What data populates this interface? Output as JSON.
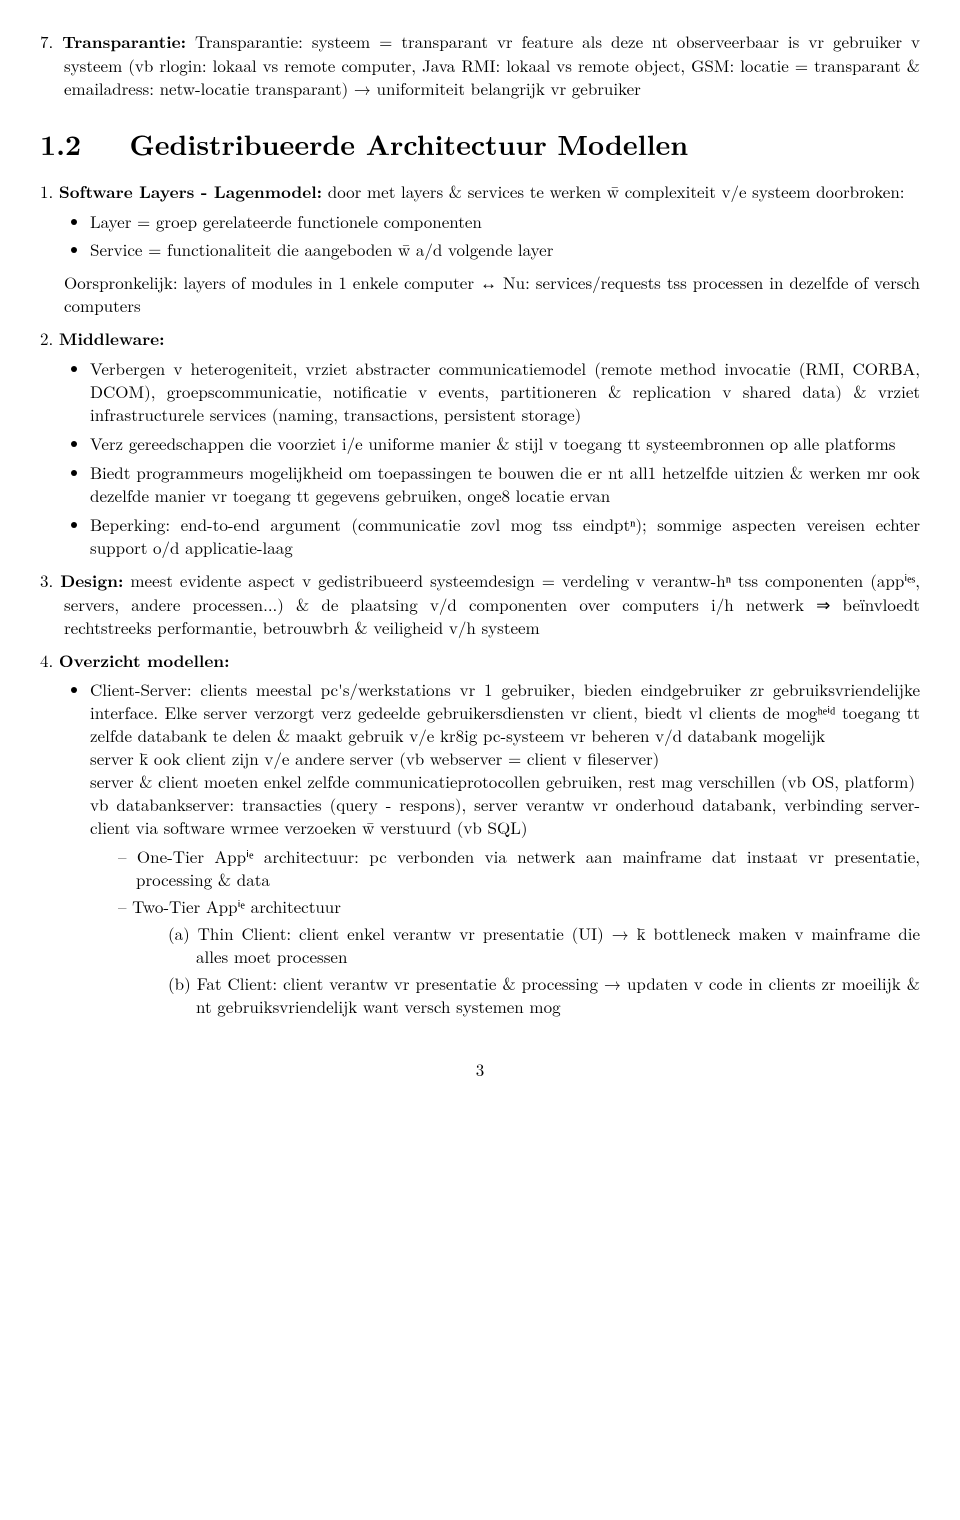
{
  "item7": "Transparantie: systeem = transparant vr feature als deze nt observeerbaar is vr gebruiker v systeem (vb rlogin: lokaal vs remote computer, Java RMI: lokaal vs remote object, GSM: locatie = transparant & emailadress: netw-locatie transparant) → uniformiteit belangrijk vr gebruiker",
  "section_number": "1.2",
  "section_title": "Gedistribueerde Architectuur Modellen",
  "ol": {
    "i1": {
      "title": "Software Layers - Lagenmodel:",
      "intro": "door met layers & services te werken w̄ complexiteit v/e systeem doorbroken:",
      "b1": "Layer = groep gerelateerde functionele componenten",
      "b2": "Service = functionaliteit die aangeboden w̄ a/d volgende layer",
      "after": "Oorspronkelijk: layers of modules in 1 enkele computer ↔ Nu: services/requests tss processen in dezelfde of versch computers"
    },
    "i2": {
      "title": "Middleware:",
      "b1": "Verbergen v heterogeniteit, vrziet abstracter communicatiemodel (remote method invocatie (RMI, CORBA, DCOM), groepscommunicatie, notificatie v events, partitioneren & replication v shared data) & vrziet infrastructurele services (naming, transactions, persistent storage)",
      "b2": "Verz gereedschappen die voorziet i/e uniforme manier & stijl v toegang tt systeembronnen op alle platforms",
      "b3": "Biedt programmeurs mogelijkheid om toepassingen te bouwen die er nt all1 hetzelfde uitzien & werken mr ook dezelfde manier vr toegang tt gegevens gebruiken, onge8 locatie ervan",
      "b4": "Beperking: end-to-end argument (communicatie zovl mog tss eindptⁿ); sommige aspecten vereisen echter support o/d applicatie-laag"
    },
    "i3": {
      "title": "Design:",
      "text": "meest evidente aspect v gedistribueerd systeemdesign = verdeling v verantw-hⁿ tss componenten (appⁱᵉˢ, servers, andere processen...) & de plaatsing v/d componenten over computers i/h netwerk ⇒ beïnvloedt rechtstreeks performantie, betrouwbrh & veiligheid v/h systeem"
    },
    "i4": {
      "title": "Overzicht modellen:",
      "b1": {
        "p1": "Client-Server: clients meestal pc's/werkstations vr 1 gebruiker, bieden eindgebruiker zr gebruiksvriendelijke interface. Elke server verzorgt verz gedeelde gebruikersdiensten vr client, biedt vl clients de mogʰᵉⁱᵈ toegang tt zelfde databank te delen & maakt gebruik v/e kr8ig pc-systeem vr beheren v/d databank mogelijk",
        "p2": "server k̄ ook client zijn v/e andere server (vb webserver = client v fileserver)",
        "p3": "server & client moeten enkel zelfde communicatieprotocollen gebruiken, rest mag verschillen (vb OS, platform)",
        "p4": "vb databankserver: transacties (query - respons), server verantw vr onderhoud databank, verbinding server-client via software wrmee verzoeken w̄ verstuurd (vb SQL)",
        "d1": "One-Tier Appⁱᵉ architectuur: pc verbonden via netwerk aan mainframe dat instaat vr presentatie, processing & data",
        "d2": "Two-Tier Appⁱᵉ architectuur",
        "a": "Thin Client: client enkel verantw vr presentatie (UI) → k̄ bottleneck maken v mainframe die alles moet processen",
        "b": "Fat Client: client verantw vr presentatie & processing → updaten v code in clients zr moeilijk & nt gebruiksvriendelijk want versch systemen mog"
      }
    }
  },
  "pagenum": "3"
}
